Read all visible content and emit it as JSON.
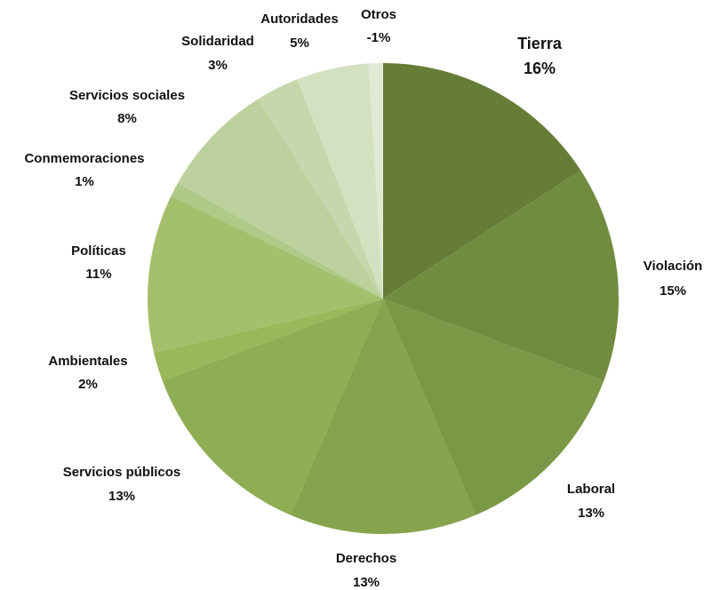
{
  "chart_data": {
    "type": "pie",
    "categories": [
      "Tierra",
      "Violación",
      "Laboral",
      "Derechos",
      "Servicios públicos",
      "Ambientales",
      "Políticas",
      "Conmemoraciones",
      "Servicios sociales",
      "Solidaridad",
      "Autoridades",
      "Otros"
    ],
    "values": [
      16,
      15,
      13,
      13,
      13,
      2,
      11,
      1,
      8,
      3,
      5,
      -1
    ],
    "value_labels": [
      "16%",
      "15%",
      "13%",
      "13%",
      "13%",
      "2%",
      "11%",
      "1%",
      "8%",
      "3%",
      "5%",
      "-1%"
    ],
    "colors": [
      "#667d37",
      "#718c3f",
      "#7b9846",
      "#86a34d",
      "#8fae54",
      "#98b85a",
      "#a4c06c",
      "#b0c888",
      "#bcd19d",
      "#c6d7ad",
      "#d3e1c1",
      "#e0e9d4"
    ]
  }
}
